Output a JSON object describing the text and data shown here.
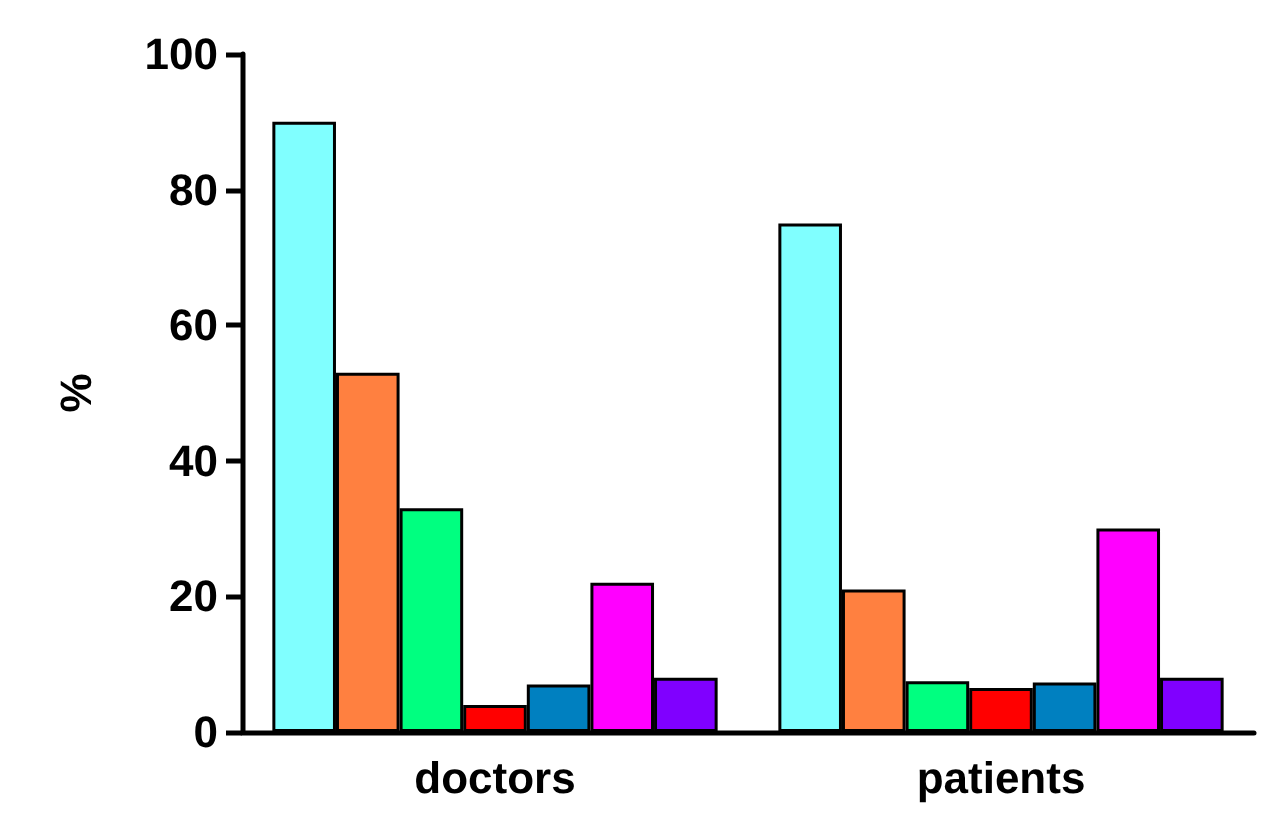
{
  "chart_data": {
    "type": "bar",
    "ylabel": "%",
    "categories": [
      "doctors",
      "patients"
    ],
    "series": [
      {
        "color": "#80ffff",
        "values": [
          90,
          75
        ]
      },
      {
        "color": "#ff8040",
        "values": [
          53,
          21
        ]
      },
      {
        "color": "#00ff80",
        "values": [
          33,
          7.5
        ]
      },
      {
        "color": "#ff0000",
        "values": [
          4,
          6.5
        ]
      },
      {
        "color": "#0080c0",
        "values": [
          7,
          7.3
        ]
      },
      {
        "color": "#ff00ff",
        "values": [
          22,
          30
        ]
      },
      {
        "color": "#8000ff",
        "values": [
          8,
          8
        ]
      }
    ],
    "ylim": [
      0,
      100
    ],
    "yticks": [
      0,
      20,
      40,
      60,
      80,
      100
    ],
    "grid": false
  }
}
